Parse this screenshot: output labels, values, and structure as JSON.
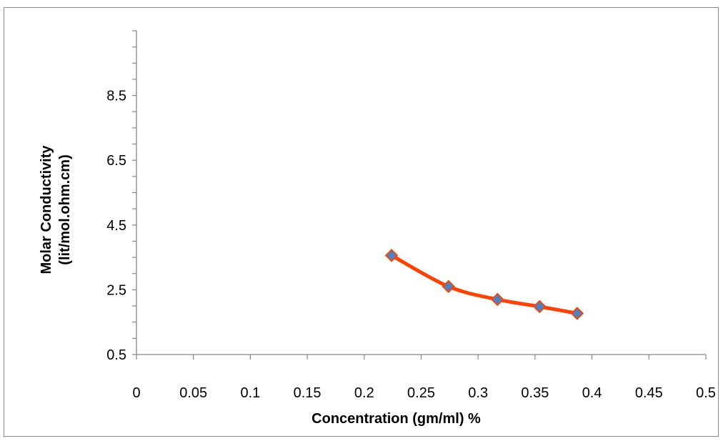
{
  "chart_data": {
    "type": "line",
    "title": "",
    "xlabel": "Concentration (gm/ml) %",
    "ylabel_lines": [
      "Molar Conductivity",
      "(lit/mol.ohm.cm)"
    ],
    "xlim": [
      0,
      0.5
    ],
    "ylim": [
      0.5,
      10.5
    ],
    "x_ticks": [
      "0",
      "0.05",
      "0.1",
      "0.15",
      "0.2",
      "0.25",
      "0.3",
      "0.35",
      "0.4",
      "0.45",
      "0.5"
    ],
    "y_ticks": [
      "0.5",
      "2.5",
      "4.5",
      "6.5",
      "8.5"
    ],
    "grid": false,
    "legend": "none",
    "series": [
      {
        "x": [
          0.224,
          0.274,
          0.317,
          0.354,
          0.387
        ],
        "y": [
          3.56,
          2.6,
          2.2,
          1.98,
          1.77
        ],
        "line_color": "#ff4000",
        "marker_fill": "#4f81bd",
        "marker_edge": "#ff4000",
        "marker": "diamond"
      }
    ]
  }
}
